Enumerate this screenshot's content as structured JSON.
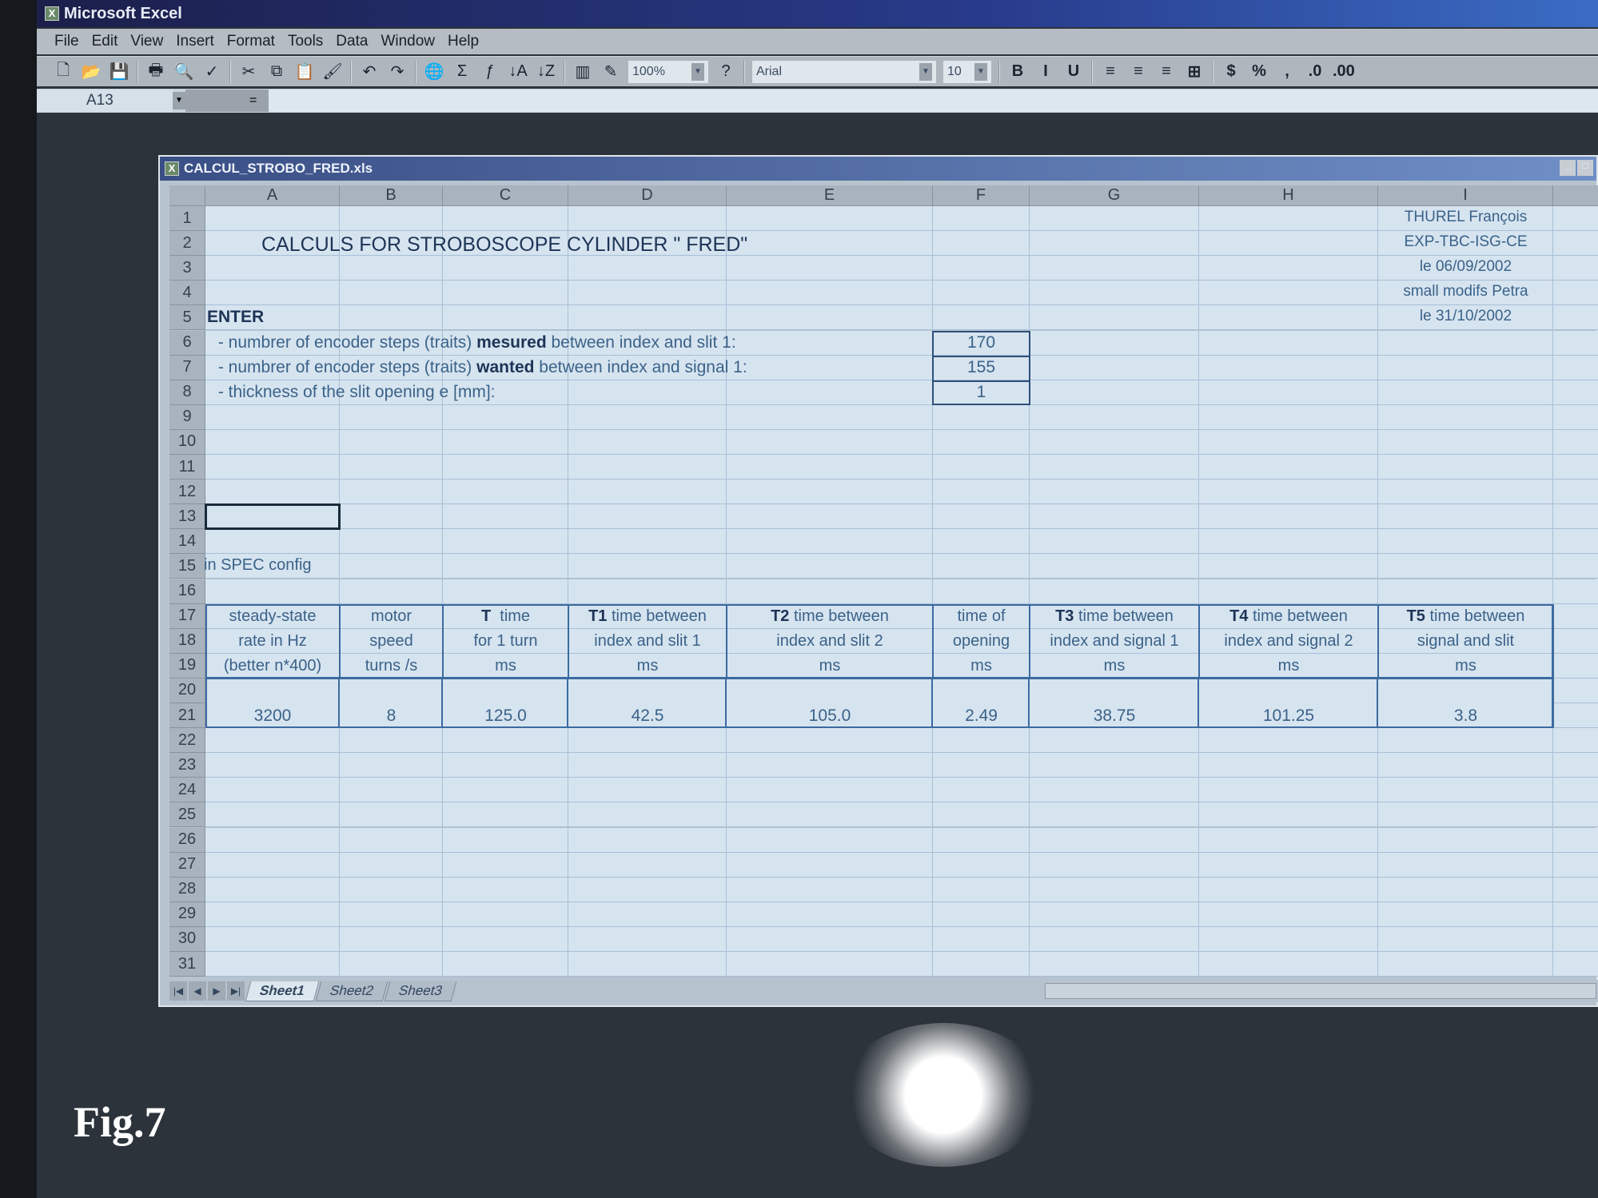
{
  "app": {
    "title": "Microsoft Excel"
  },
  "menu": [
    "File",
    "Edit",
    "View",
    "Insert",
    "Format",
    "Tools",
    "Data",
    "Window",
    "Help"
  ],
  "toolbar": {
    "icons": [
      "new-icon",
      "open-icon",
      "save-icon",
      "print-icon",
      "print-preview-icon",
      "spelling-icon",
      "cut-icon",
      "copy-icon",
      "paste-icon",
      "format-painter-icon",
      "undo-icon",
      "redo-icon",
      "hyperlink-icon",
      "autosum-icon",
      "function-icon",
      "sort-ascending-icon",
      "sort-descending-icon",
      "chart-wizard-icon",
      "drawing-icon"
    ],
    "zoom": "100%",
    "font": "Arial",
    "font_size": "10",
    "format_icons": [
      "bold-icon",
      "italic-icon",
      "underline-icon",
      "align-left-icon",
      "center-icon",
      "align-right-icon",
      "merge-center-icon",
      "currency-icon",
      "percent-icon",
      "comma-icon",
      "increase-decimal-icon",
      "decrease-decimal-icon"
    ]
  },
  "formula_bar": {
    "name_box": "A13",
    "equals": "=",
    "value": ""
  },
  "workbook": {
    "title": "CALCUL_STROBO_FRED.xls"
  },
  "sheet": {
    "columns": [
      "A",
      "B",
      "C",
      "D",
      "E",
      "F",
      "G",
      "H",
      "I"
    ],
    "row_count": 31,
    "selected_cell": "A13",
    "title": "CALCULS FOR STROBOSCOPE  CYLINDER \" FRED\"",
    "author_notes": [
      "THUREL François",
      "EXP-TBC-ISG-CE",
      "le  06/09/2002",
      "small modifs Petra",
      "le 31/10/2002"
    ],
    "enter_label": "ENTER",
    "inputs": [
      {
        "pre": " - numbrer of encoder steps (traits) ",
        "bold": "mesured",
        "post": " between index and slit 1:",
        "value": "170"
      },
      {
        "pre": " - numbrer of encoder steps (traits) ",
        "bold": "wanted",
        "post": " between index and signal 1:",
        "value": "155"
      },
      {
        "pre": " - thickness of the slit opening e [mm]:",
        "bold": "",
        "post": "",
        "value": "1"
      }
    ],
    "config_label": "in SPEC config",
    "results": [
      {
        "prefix": "",
        "l1": "steady-state",
        "l2": "rate in Hz",
        "l3": "(better n*400)",
        "value": "3200"
      },
      {
        "prefix": "",
        "l1": "motor",
        "l2": "speed",
        "l3": "turns /s",
        "value": "8"
      },
      {
        "prefix": "T",
        "l1": "  time",
        "l2": "for 1 turn",
        "l3": "ms",
        "value": "125.0"
      },
      {
        "prefix": "T1",
        "l1": " time between",
        "l2": "index and slit 1",
        "l3": "ms",
        "value": "42.5"
      },
      {
        "prefix": "T2",
        "l1": " time between",
        "l2": "index and slit 2",
        "l3": "ms",
        "value": "105.0"
      },
      {
        "prefix": "",
        "l1": "time of",
        "l2": "opening",
        "l3": "ms",
        "value": "2.49"
      },
      {
        "prefix": "T3",
        "l1": " time between",
        "l2": "index and signal 1",
        "l3": "ms",
        "value": "38.75"
      },
      {
        "prefix": "T4",
        "l1": " time between",
        "l2": "index and signal 2",
        "l3": "ms",
        "value": "101.25"
      },
      {
        "prefix": "T5",
        "l1": " time between",
        "l2": "signal and slit",
        "l3": "ms",
        "value": "3.8"
      }
    ]
  },
  "sheet_tabs": [
    "Sheet1",
    "Sheet2",
    "Sheet3"
  ],
  "active_tab": "Sheet1",
  "caption": "Fig.7"
}
